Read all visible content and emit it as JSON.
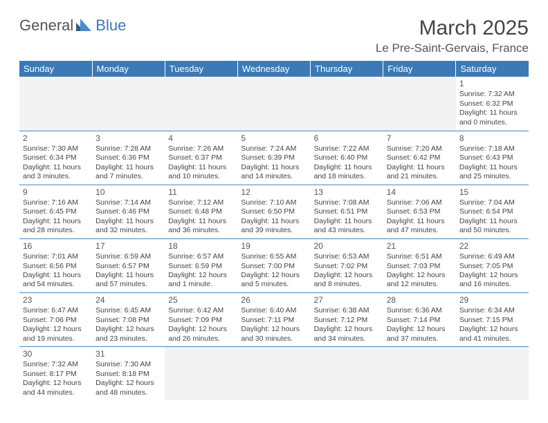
{
  "logo": {
    "general": "General",
    "blue": "Blue"
  },
  "title": "March 2025",
  "location": "Le Pre-Saint-Gervais, France",
  "colors": {
    "header_bg": "#3a7ab8",
    "header_text": "#ffffff",
    "border": "#4a86be",
    "text": "#444444",
    "blank_bg": "#f3f3f3"
  },
  "day_headers": [
    "Sunday",
    "Monday",
    "Tuesday",
    "Wednesday",
    "Thursday",
    "Friday",
    "Saturday"
  ],
  "weeks": [
    [
      null,
      null,
      null,
      null,
      null,
      null,
      {
        "n": "1",
        "sr": "7:32 AM",
        "ss": "6:32 PM",
        "dl": "11 hours and 0 minutes."
      }
    ],
    [
      {
        "n": "2",
        "sr": "7:30 AM",
        "ss": "6:34 PM",
        "dl": "11 hours and 3 minutes."
      },
      {
        "n": "3",
        "sr": "7:28 AM",
        "ss": "6:36 PM",
        "dl": "11 hours and 7 minutes."
      },
      {
        "n": "4",
        "sr": "7:26 AM",
        "ss": "6:37 PM",
        "dl": "11 hours and 10 minutes."
      },
      {
        "n": "5",
        "sr": "7:24 AM",
        "ss": "6:39 PM",
        "dl": "11 hours and 14 minutes."
      },
      {
        "n": "6",
        "sr": "7:22 AM",
        "ss": "6:40 PM",
        "dl": "11 hours and 18 minutes."
      },
      {
        "n": "7",
        "sr": "7:20 AM",
        "ss": "6:42 PM",
        "dl": "11 hours and 21 minutes."
      },
      {
        "n": "8",
        "sr": "7:18 AM",
        "ss": "6:43 PM",
        "dl": "11 hours and 25 minutes."
      }
    ],
    [
      {
        "n": "9",
        "sr": "7:16 AM",
        "ss": "6:45 PM",
        "dl": "11 hours and 28 minutes."
      },
      {
        "n": "10",
        "sr": "7:14 AM",
        "ss": "6:46 PM",
        "dl": "11 hours and 32 minutes."
      },
      {
        "n": "11",
        "sr": "7:12 AM",
        "ss": "6:48 PM",
        "dl": "11 hours and 36 minutes."
      },
      {
        "n": "12",
        "sr": "7:10 AM",
        "ss": "6:50 PM",
        "dl": "11 hours and 39 minutes."
      },
      {
        "n": "13",
        "sr": "7:08 AM",
        "ss": "6:51 PM",
        "dl": "11 hours and 43 minutes."
      },
      {
        "n": "14",
        "sr": "7:06 AM",
        "ss": "6:53 PM",
        "dl": "11 hours and 47 minutes."
      },
      {
        "n": "15",
        "sr": "7:04 AM",
        "ss": "6:54 PM",
        "dl": "11 hours and 50 minutes."
      }
    ],
    [
      {
        "n": "16",
        "sr": "7:01 AM",
        "ss": "6:56 PM",
        "dl": "11 hours and 54 minutes."
      },
      {
        "n": "17",
        "sr": "6:59 AM",
        "ss": "6:57 PM",
        "dl": "11 hours and 57 minutes."
      },
      {
        "n": "18",
        "sr": "6:57 AM",
        "ss": "6:59 PM",
        "dl": "12 hours and 1 minute."
      },
      {
        "n": "19",
        "sr": "6:55 AM",
        "ss": "7:00 PM",
        "dl": "12 hours and 5 minutes."
      },
      {
        "n": "20",
        "sr": "6:53 AM",
        "ss": "7:02 PM",
        "dl": "12 hours and 8 minutes."
      },
      {
        "n": "21",
        "sr": "6:51 AM",
        "ss": "7:03 PM",
        "dl": "12 hours and 12 minutes."
      },
      {
        "n": "22",
        "sr": "6:49 AM",
        "ss": "7:05 PM",
        "dl": "12 hours and 16 minutes."
      }
    ],
    [
      {
        "n": "23",
        "sr": "6:47 AM",
        "ss": "7:06 PM",
        "dl": "12 hours and 19 minutes."
      },
      {
        "n": "24",
        "sr": "6:45 AM",
        "ss": "7:08 PM",
        "dl": "12 hours and 23 minutes."
      },
      {
        "n": "25",
        "sr": "6:42 AM",
        "ss": "7:09 PM",
        "dl": "12 hours and 26 minutes."
      },
      {
        "n": "26",
        "sr": "6:40 AM",
        "ss": "7:11 PM",
        "dl": "12 hours and 30 minutes."
      },
      {
        "n": "27",
        "sr": "6:38 AM",
        "ss": "7:12 PM",
        "dl": "12 hours and 34 minutes."
      },
      {
        "n": "28",
        "sr": "6:36 AM",
        "ss": "7:14 PM",
        "dl": "12 hours and 37 minutes."
      },
      {
        "n": "29",
        "sr": "6:34 AM",
        "ss": "7:15 PM",
        "dl": "12 hours and 41 minutes."
      }
    ],
    [
      {
        "n": "30",
        "sr": "7:32 AM",
        "ss": "8:17 PM",
        "dl": "12 hours and 44 minutes."
      },
      {
        "n": "31",
        "sr": "7:30 AM",
        "ss": "8:18 PM",
        "dl": "12 hours and 48 minutes."
      },
      null,
      null,
      null,
      null,
      null
    ]
  ],
  "labels": {
    "sunrise": "Sunrise:",
    "sunset": "Sunset:",
    "daylight": "Daylight:"
  }
}
